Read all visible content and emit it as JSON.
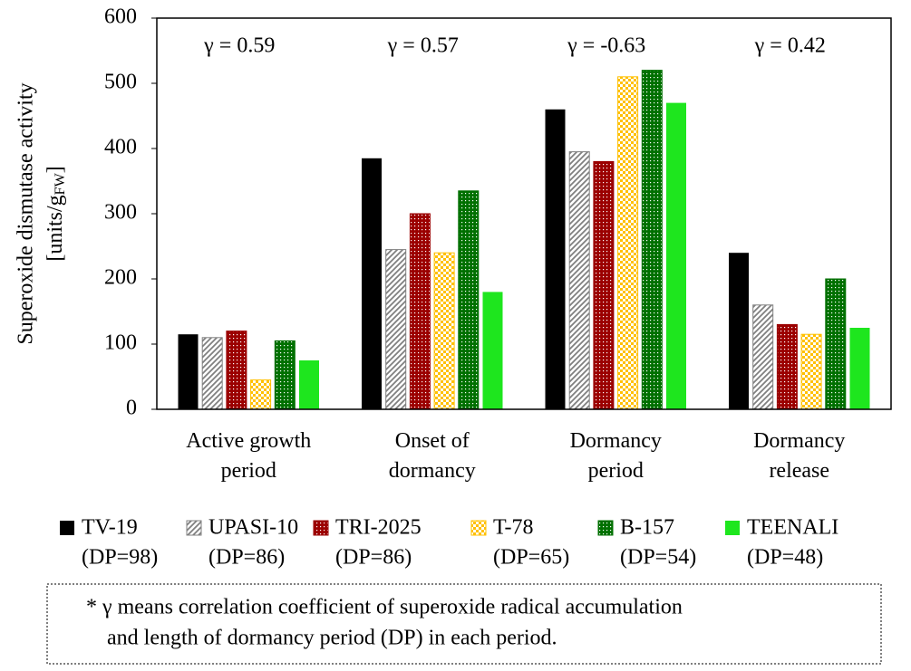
{
  "chart_data": {
    "type": "bar",
    "y_label": "Superoxide dismutase activity",
    "y_unit": {
      "prefix": "[units/g",
      "sub": "FW",
      "suffix": "]"
    },
    "categories": [
      "Active growth\nperiod",
      "Onset of\ndormancy",
      "Dormancy\nperiod",
      "Dormancy\nrelease"
    ],
    "annotations": [
      "γ = 0.59",
      "γ = 0.57",
      "γ = -0.63",
      "γ = 0.42"
    ],
    "series": [
      {
        "name": "TV-19",
        "note": "(DP=98)",
        "color": "#000000",
        "pattern": "solid",
        "values": [
          115,
          385,
          460,
          240
        ]
      },
      {
        "name": "UPASI-10",
        "note": "(DP=86)",
        "color": "#808080",
        "pattern": "hatch",
        "values": [
          110,
          245,
          395,
          160
        ]
      },
      {
        "name": "TRI-2025",
        "note": "(DP=86)",
        "color": "#9b0000",
        "pattern": "dots",
        "values": [
          120,
          300,
          380,
          130
        ]
      },
      {
        "name": "T-78",
        "note": "(DP=65)",
        "color": "#ffc000",
        "pattern": "checker",
        "values": [
          45,
          240,
          510,
          115
        ]
      },
      {
        "name": "B-157",
        "note": "(DP=54)",
        "color": "#007000",
        "pattern": "dots",
        "values": [
          105,
          335,
          520,
          200
        ]
      },
      {
        "name": "TEENALI",
        "note": "(DP=48)",
        "color": "#1ee61e",
        "pattern": "solid",
        "values": [
          75,
          180,
          470,
          125
        ]
      }
    ],
    "ylim": [
      0,
      600
    ],
    "yticks": [
      0,
      100,
      200,
      300,
      400,
      500,
      600
    ],
    "grid": false,
    "footnote": [
      "* γ means correlation coefficient of superoxide radical accumulation",
      "and length of dormancy period (DP) in each period."
    ]
  }
}
